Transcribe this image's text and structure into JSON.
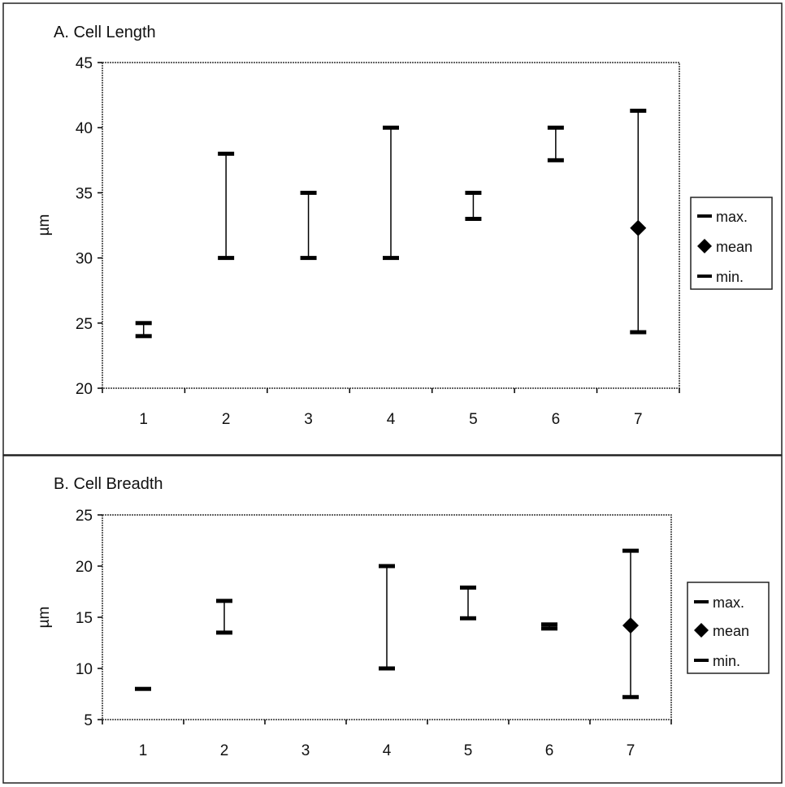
{
  "chart_data": [
    {
      "type": "range",
      "title": "A. Cell Length",
      "xlabel": "",
      "ylabel": "µm",
      "ylim": [
        20,
        45
      ],
      "yticks": [
        20,
        25,
        30,
        35,
        40,
        45
      ],
      "categories": [
        "1",
        "2",
        "3",
        "4",
        "5",
        "6",
        "7"
      ],
      "grid": false,
      "legend_position": "right",
      "legend": [
        "max.",
        "mean",
        "min."
      ],
      "series": [
        {
          "name": "max.",
          "values": [
            25,
            38,
            35,
            40,
            35,
            40,
            41.3
          ]
        },
        {
          "name": "mean",
          "values": [
            null,
            null,
            null,
            null,
            null,
            null,
            32.3
          ]
        },
        {
          "name": "min.",
          "values": [
            24,
            30,
            30,
            30,
            33,
            37.5,
            24.3
          ]
        }
      ]
    },
    {
      "type": "range",
      "title": "B. Cell Breadth",
      "xlabel": "",
      "ylabel": "µm",
      "ylim": [
        5,
        25
      ],
      "yticks": [
        5,
        10,
        15,
        20,
        25
      ],
      "categories": [
        "1",
        "2",
        "3",
        "4",
        "5",
        "6",
        "7"
      ],
      "grid": false,
      "legend_position": "right",
      "legend": [
        "max.",
        "mean",
        "min."
      ],
      "series": [
        {
          "name": "max.",
          "values": [
            8,
            16.6,
            null,
            20,
            17.9,
            14.3,
            21.5
          ]
        },
        {
          "name": "mean",
          "values": [
            null,
            null,
            null,
            null,
            null,
            null,
            14.2
          ]
        },
        {
          "name": "min.",
          "values": [
            8,
            13.5,
            null,
            10,
            14.9,
            13.9,
            7.2
          ]
        }
      ]
    }
  ]
}
